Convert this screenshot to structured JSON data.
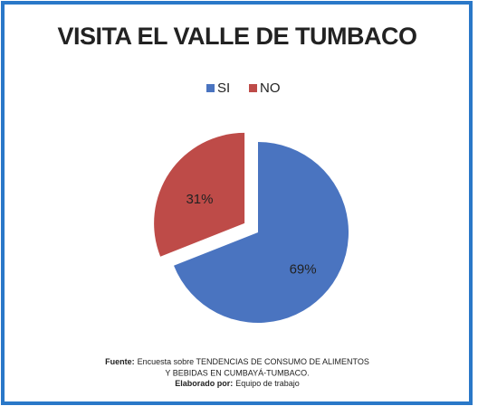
{
  "chart_data": {
    "type": "pie",
    "title": "VISITA EL VALLE DE TUMBACO",
    "categories": [
      "SI",
      "NO"
    ],
    "values": [
      69,
      31
    ],
    "value_labels": [
      "69%",
      "31%"
    ],
    "colors": [
      "#4a74c0",
      "#be4b48"
    ],
    "legend": "top",
    "explode": [
      false,
      true
    ],
    "notes": {
      "source_label": "Fuente:",
      "source_lines": [
        "Encuesta sobre TENDENCIAS DE CONSUMO DE ALIMENTOS",
        "Y BEBIDAS EN CUMBAYÁ-TUMBACO."
      ],
      "author_label": "Elaborado por:",
      "author": "Equipo de trabajo"
    }
  }
}
